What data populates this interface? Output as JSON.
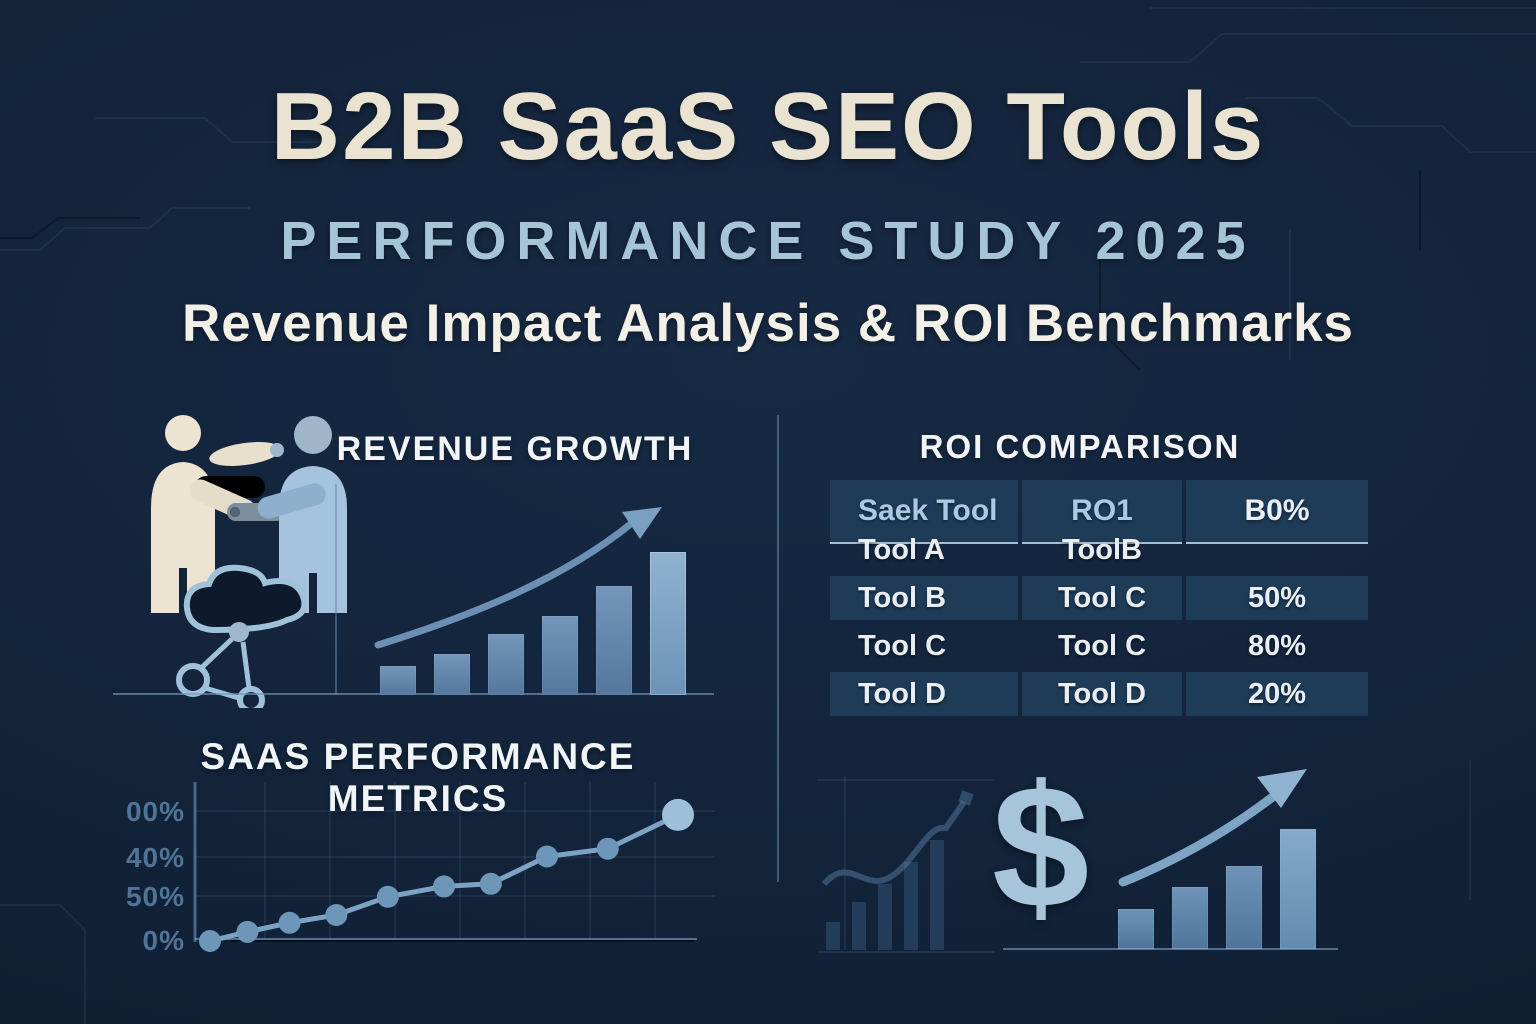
{
  "header": {
    "title": "B2B SaaS SEO Tools",
    "subtitle": "PERFORMANCE STUDY 2025",
    "tagline": "Revenue Impact Analysis & ROI Benchmarks"
  },
  "sections": {
    "revenue_growth": {
      "title": "REVENUE GROWTH"
    },
    "roi_comparison": {
      "title": "ROI COMPARISON"
    },
    "saas_metrics": {
      "title": "SAAS PERFORMANCE METRICS"
    },
    "roi_growth": {
      "dollar_symbol": "$"
    }
  },
  "icons": {
    "handshake": "handshake-people-icon",
    "cloud_network": "cloud-network-icon",
    "growth_arrow": "growth-arrow-icon",
    "dollar": "dollar-sign-icon"
  },
  "colors": {
    "background": "#12233a",
    "title_cream": "#ebe3d1",
    "subtitle_blue": "#a5c4d8",
    "tagline_white": "#f3f0e8",
    "bar_blue": "#5c81a8",
    "bar_blue_light": "#7ea3c3",
    "line_blue": "#7ca3c4",
    "table_cell_bg": "#1e3c58",
    "table_header_text": "#a9cae2",
    "table_text": "#e9eef4",
    "axis_label_blue": "#517496"
  },
  "chart_data": [
    {
      "id": "revenue_growth_bars",
      "type": "bar",
      "title": "REVENUE GROWTH",
      "categories": [
        "",
        "",
        "",
        "",
        "",
        ""
      ],
      "values": [
        20,
        29,
        43,
        55,
        76,
        100
      ],
      "xlabel": "",
      "ylabel": "",
      "note": "unlabeled ascending bars with curved up arrow; values are relative heights (% of tallest bar)"
    },
    {
      "id": "roi_comparison_table",
      "type": "table",
      "title": "ROI COMPARISON",
      "headers": [
        "Saek Tool",
        "RO1",
        "B0%"
      ],
      "rows": [
        [
          "Tool A",
          "ToolB",
          ""
        ],
        [
          "Tool B",
          "Tool C",
          "50%"
        ],
        [
          "Tool C",
          "Tool C",
          "80%"
        ],
        [
          "Tool D",
          "Tool D",
          "20%"
        ]
      ]
    },
    {
      "id": "saas_performance_line",
      "type": "line",
      "title": "SAAS PERFORMANCE METRICS",
      "y_tick_labels": [
        "00%",
        "40%",
        "50%",
        "0%"
      ],
      "points": [
        [
          0,
          0
        ],
        [
          8,
          7
        ],
        [
          17,
          14
        ],
        [
          27,
          20
        ],
        [
          38,
          34
        ],
        [
          50,
          42
        ],
        [
          60,
          44
        ],
        [
          72,
          65
        ],
        [
          85,
          71
        ],
        [
          100,
          97
        ]
      ],
      "grid": true,
      "note": "x,y in % of plot area; rising line with round markers, larger end marker"
    },
    {
      "id": "roi_growth_bars",
      "type": "bar",
      "categories": [
        "",
        "",
        "",
        ""
      ],
      "values": [
        33,
        52,
        69,
        100
      ],
      "note": "bottom-right ascending bars beside dollar sign and up arrow; relative heights"
    }
  ]
}
